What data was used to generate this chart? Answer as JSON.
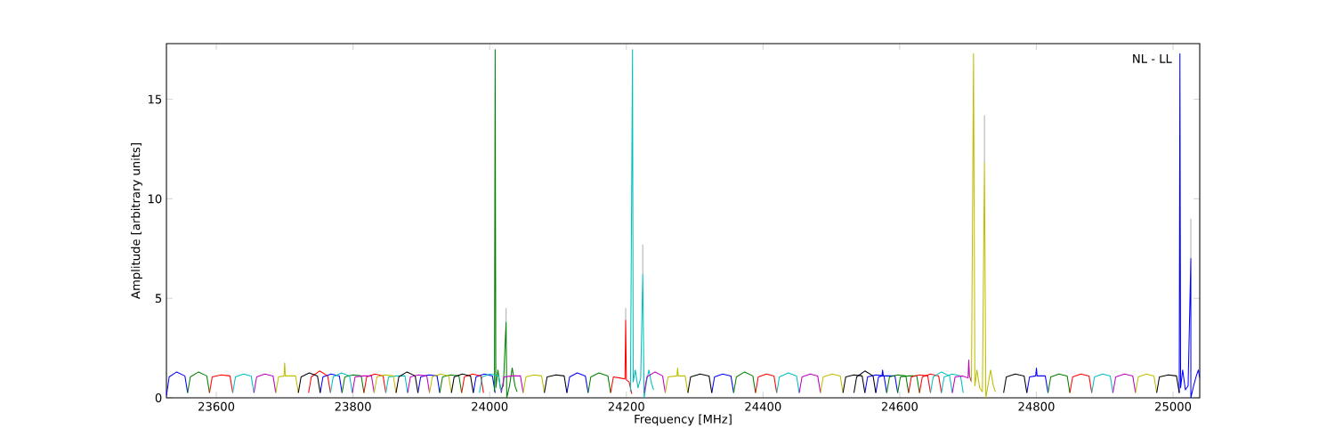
{
  "chart_data": {
    "type": "line",
    "xlabel": "Frequency [MHz]",
    "ylabel": "Amplitude [arbitrary units]",
    "annotations": [
      "NL - LL"
    ],
    "xlim": [
      23527,
      25039
    ],
    "ylim": [
      0,
      17.8
    ],
    "xticks": [
      23600,
      23800,
      24000,
      24200,
      24400,
      24600,
      24800,
      25000
    ],
    "yticks": [
      0,
      5,
      10,
      15
    ],
    "line_style": "solid",
    "marker": "none",
    "series": [
      {
        "color": "#b0b0b0",
        "x": [
          24024,
          24024,
          null,
          24199,
          24199,
          null,
          24224,
          24224,
          null,
          24724,
          24724,
          null,
          25026,
          25026
        ],
        "values": [
          3.8,
          4.5,
          null,
          3.9,
          4.5,
          null,
          6.2,
          7.7,
          null,
          11.8,
          14.2,
          null,
          7.0,
          9.0
        ]
      },
      {
        "color": "#0000ff",
        "x": [
          23527,
          23531,
          23542,
          23554,
          23558,
          null,
          23752,
          23756,
          23768,
          23780,
          23784,
          null,
          23895,
          23899,
          23911,
          23923,
          23927,
          null,
          23976,
          23980,
          23992,
          24004,
          24008,
          null,
          24113,
          24117,
          24128,
          24140,
          24144,
          null,
          24325,
          24329,
          24341,
          24353,
          24357,
          null,
          24549,
          24553,
          24565,
          24577,
          24581,
          null,
          24565,
          24569,
          24574,
          24575,
          24576,
          24593,
          24597,
          null,
          24786,
          24790,
          24799,
          24800,
          24801,
          24813,
          24817,
          null,
          25009,
          25010,
          25011,
          25014,
          25018,
          25022,
          25026,
          25026,
          25030,
          25034,
          25037,
          25039
        ],
        "values": [
          0.1,
          1.05,
          1.3,
          1.1,
          0.25,
          null,
          0.25,
          1.05,
          1.2,
          1.1,
          0.25,
          null,
          0.25,
          1.05,
          1.15,
          1.1,
          0.25,
          null,
          0.25,
          1.05,
          1.2,
          1.1,
          0.25,
          null,
          0.25,
          1.05,
          1.25,
          1.1,
          0.25,
          null,
          0.25,
          1.05,
          1.2,
          1.1,
          0.25,
          null,
          0.25,
          1.05,
          1.15,
          1.1,
          0.25,
          null,
          0.25,
          1.05,
          1.1,
          1.4,
          1.1,
          1.1,
          0.25,
          null,
          0.25,
          1.05,
          1.1,
          1.5,
          1.1,
          1.1,
          0.25,
          null,
          0.25,
          17.3,
          0.5,
          1.4,
          0.4,
          0.6,
          7.0,
          0,
          0.6,
          1.1,
          1.4,
          1.0
        ]
      },
      {
        "color": "#008000",
        "x": [
          23558,
          23562,
          23574,
          23586,
          23590,
          null,
          23784,
          23788,
          23800,
          23812,
          23816,
          null,
          23927,
          23931,
          23943,
          23955,
          23959,
          null,
          24007,
          24008,
          24009,
          24012,
          24016,
          24020,
          24024,
          24025,
          24029,
          24033,
          24037,
          24040,
          null,
          24144,
          24148,
          24160,
          24173,
          24177,
          null,
          24357,
          24361,
          24373,
          24385,
          24389,
          null,
          24581,
          24585,
          24597,
          24609,
          24613,
          null,
          24597,
          24601,
          24613,
          24625,
          24629,
          null,
          24817,
          24821,
          24833,
          24845,
          24849
        ],
        "values": [
          0.25,
          1.05,
          1.3,
          1.1,
          0.25,
          null,
          0.25,
          1.05,
          1.15,
          1.1,
          0.25,
          null,
          0.25,
          1.05,
          1.15,
          1.1,
          0.25,
          null,
          0.3,
          17.5,
          0.5,
          1.4,
          0.4,
          0.6,
          3.8,
          0,
          0.6,
          1.5,
          0.6,
          0.3,
          null,
          0.25,
          1.05,
          1.25,
          1.1,
          0.25,
          null,
          0.25,
          1.05,
          1.3,
          1.1,
          0.25,
          null,
          0.25,
          1.05,
          1.15,
          1.1,
          0.25,
          null,
          0.25,
          1.05,
          1.1,
          1.1,
          0.25,
          null,
          0.25,
          1.05,
          1.2,
          1.1,
          0.25
        ]
      },
      {
        "color": "#ff0000",
        "x": [
          23590,
          23594,
          23607,
          23620,
          23624,
          null,
          23735,
          23739,
          23751,
          23763,
          23767,
          null,
          23816,
          23820,
          23832,
          23844,
          23848,
          null,
          23959,
          23963,
          23975,
          23987,
          23991,
          null,
          24177,
          24181,
          24190,
          24198,
          24199,
          24200,
          24204,
          24208,
          null,
          24389,
          24393,
          24405,
          24416,
          24420,
          null,
          24613,
          24617,
          24629,
          24641,
          24645,
          null,
          24629,
          24633,
          24645,
          24657,
          24661,
          null,
          24849,
          24853,
          24865,
          24877,
          24881
        ],
        "values": [
          0.25,
          1.05,
          1.15,
          1.1,
          0.25,
          null,
          0.25,
          1.05,
          1.35,
          1.1,
          0.25,
          null,
          0.25,
          1.05,
          1.2,
          1.1,
          0.25,
          null,
          0.25,
          1.05,
          1.2,
          1.1,
          0.25,
          null,
          0.25,
          1.05,
          1.0,
          0.95,
          3.9,
          0.9,
          0.8,
          0.2,
          null,
          0.25,
          1.05,
          1.2,
          1.1,
          0.25,
          null,
          0.25,
          1.05,
          1.15,
          1.1,
          0.25,
          null,
          0.25,
          1.05,
          1.2,
          1.1,
          0.25,
          null,
          0.25,
          1.05,
          1.2,
          1.1,
          0.25
        ]
      },
      {
        "color": "#00bfbf",
        "x": [
          23624,
          23628,
          23640,
          23651,
          23655,
          null,
          23767,
          23771,
          23783,
          23795,
          23799,
          null,
          23848,
          23852,
          23864,
          23876,
          23880,
          null,
          23985,
          23989,
          24001,
          24013,
          24017,
          null,
          24206,
          24209,
          24210,
          24213,
          24217,
          24221,
          24224,
          24226,
          24230,
          24233,
          24237,
          24240,
          null,
          24420,
          24424,
          24437,
          24449,
          24453,
          null,
          24645,
          24649,
          24661,
          24673,
          24677,
          null,
          24661,
          24665,
          24677,
          24689,
          24693,
          null,
          24881,
          24885,
          24897,
          24908,
          24912
        ],
        "values": [
          0.25,
          1.05,
          1.2,
          1.1,
          0.25,
          null,
          0.25,
          1.05,
          1.25,
          1.1,
          0.25,
          null,
          0.25,
          1.05,
          1.1,
          1.1,
          0.25,
          null,
          0.25,
          1.05,
          1.2,
          1.1,
          0.25,
          null,
          0.3,
          17.5,
          0.8,
          1.4,
          0.5,
          1.0,
          6.2,
          0,
          0.9,
          1.4,
          0.7,
          0.4,
          null,
          0.25,
          1.05,
          1.25,
          1.1,
          0.25,
          null,
          0.25,
          1.05,
          1.3,
          1.1,
          0.25,
          null,
          0.25,
          1.05,
          1.2,
          1.1,
          0.25,
          null,
          0.25,
          1.05,
          1.2,
          1.1,
          0.25
        ]
      },
      {
        "color": "#bf00bf",
        "x": [
          23655,
          23659,
          23671,
          23683,
          23687,
          null,
          23799,
          23803,
          23815,
          23827,
          23831,
          null,
          23880,
          23884,
          23896,
          23908,
          23912,
          null,
          24017,
          24021,
          24033,
          24045,
          24049,
          null,
          24226,
          24230,
          24242,
          24253,
          24257,
          null,
          24453,
          24457,
          24469,
          24480,
          24484,
          null,
          24677,
          24681,
          24692,
          24700,
          24701,
          24702,
          24705,
          null,
          24912,
          24916,
          24929,
          24941,
          24945
        ],
        "values": [
          0.25,
          1.05,
          1.2,
          1.1,
          0.25,
          null,
          0.25,
          1.05,
          1.1,
          1.1,
          0.25,
          null,
          0.25,
          1.05,
          1.15,
          1.1,
          0.25,
          null,
          0.25,
          1.05,
          1.1,
          1.1,
          0.25,
          null,
          0.25,
          1.05,
          1.3,
          1.1,
          0.25,
          null,
          0.25,
          1.05,
          1.2,
          1.1,
          0.25,
          null,
          0.25,
          1.05,
          1.1,
          1.0,
          1.9,
          1.1,
          0.8,
          null,
          0.25,
          1.05,
          1.2,
          1.1,
          0.25
        ]
      },
      {
        "color": "#bfbf00",
        "x": [
          23687,
          23691,
          23699,
          23700,
          23701,
          23716,
          23720,
          null,
          23831,
          23835,
          23847,
          23859,
          23863,
          null,
          23912,
          23916,
          23928,
          23940,
          23944,
          null,
          24049,
          24053,
          24065,
          24076,
          24080,
          null,
          24257,
          24261,
          24274,
          24275,
          24276,
          24286,
          24290,
          null,
          24484,
          24488,
          24501,
          24513,
          24517,
          null,
          24705,
          24708,
          24710,
          24713,
          24717,
          24721,
          24724,
          24726,
          24730,
          24733,
          24737,
          24740,
          null,
          24945,
          24949,
          24961,
          24972,
          24976
        ],
        "values": [
          0.25,
          1.05,
          1.1,
          1.75,
          1.1,
          1.1,
          0.25,
          null,
          0.25,
          1.05,
          1.15,
          1.1,
          0.25,
          null,
          0.25,
          1.05,
          1.2,
          1.1,
          0.25,
          null,
          0.25,
          1.05,
          1.15,
          1.1,
          0.25,
          null,
          0.25,
          1.05,
          1.1,
          1.5,
          1.1,
          1.1,
          0.25,
          null,
          0.25,
          1.05,
          1.2,
          1.1,
          0.25,
          null,
          0.8,
          17.3,
          0.6,
          1.4,
          0.5,
          0.3,
          11.8,
          0,
          0.8,
          1.4,
          0.6,
          0.3,
          null,
          0.25,
          1.05,
          1.2,
          1.1,
          0.25
        ]
      },
      {
        "color": "#000000",
        "x": [
          23720,
          23724,
          23736,
          23748,
          23752,
          null,
          23863,
          23867,
          23879,
          23891,
          23895,
          null,
          23944,
          23948,
          23960,
          23972,
          23976,
          null,
          24080,
          24084,
          24097,
          24109,
          24113,
          null,
          24290,
          24294,
          24308,
          24321,
          24325,
          null,
          24517,
          24521,
          24533,
          24545,
          24549,
          null,
          24533,
          24537,
          24549,
          24561,
          24565,
          null,
          24752,
          24756,
          24769,
          24782,
          24786,
          null,
          24976,
          24980,
          24993,
          25005,
          25009
        ],
        "values": [
          0.25,
          1.05,
          1.25,
          1.1,
          0.25,
          null,
          0.25,
          1.05,
          1.3,
          1.1,
          0.25,
          null,
          0.25,
          1.05,
          1.2,
          1.1,
          0.25,
          null,
          0.25,
          1.05,
          1.15,
          1.1,
          0.25,
          null,
          0.25,
          1.05,
          1.2,
          1.1,
          0.25,
          null,
          0.25,
          1.05,
          1.15,
          1.1,
          0.25,
          null,
          0.25,
          1.05,
          1.35,
          1.1,
          0.25,
          null,
          0.25,
          1.05,
          1.2,
          1.1,
          0.25,
          null,
          0.25,
          1.05,
          1.15,
          1.1,
          0.25
        ]
      }
    ]
  }
}
